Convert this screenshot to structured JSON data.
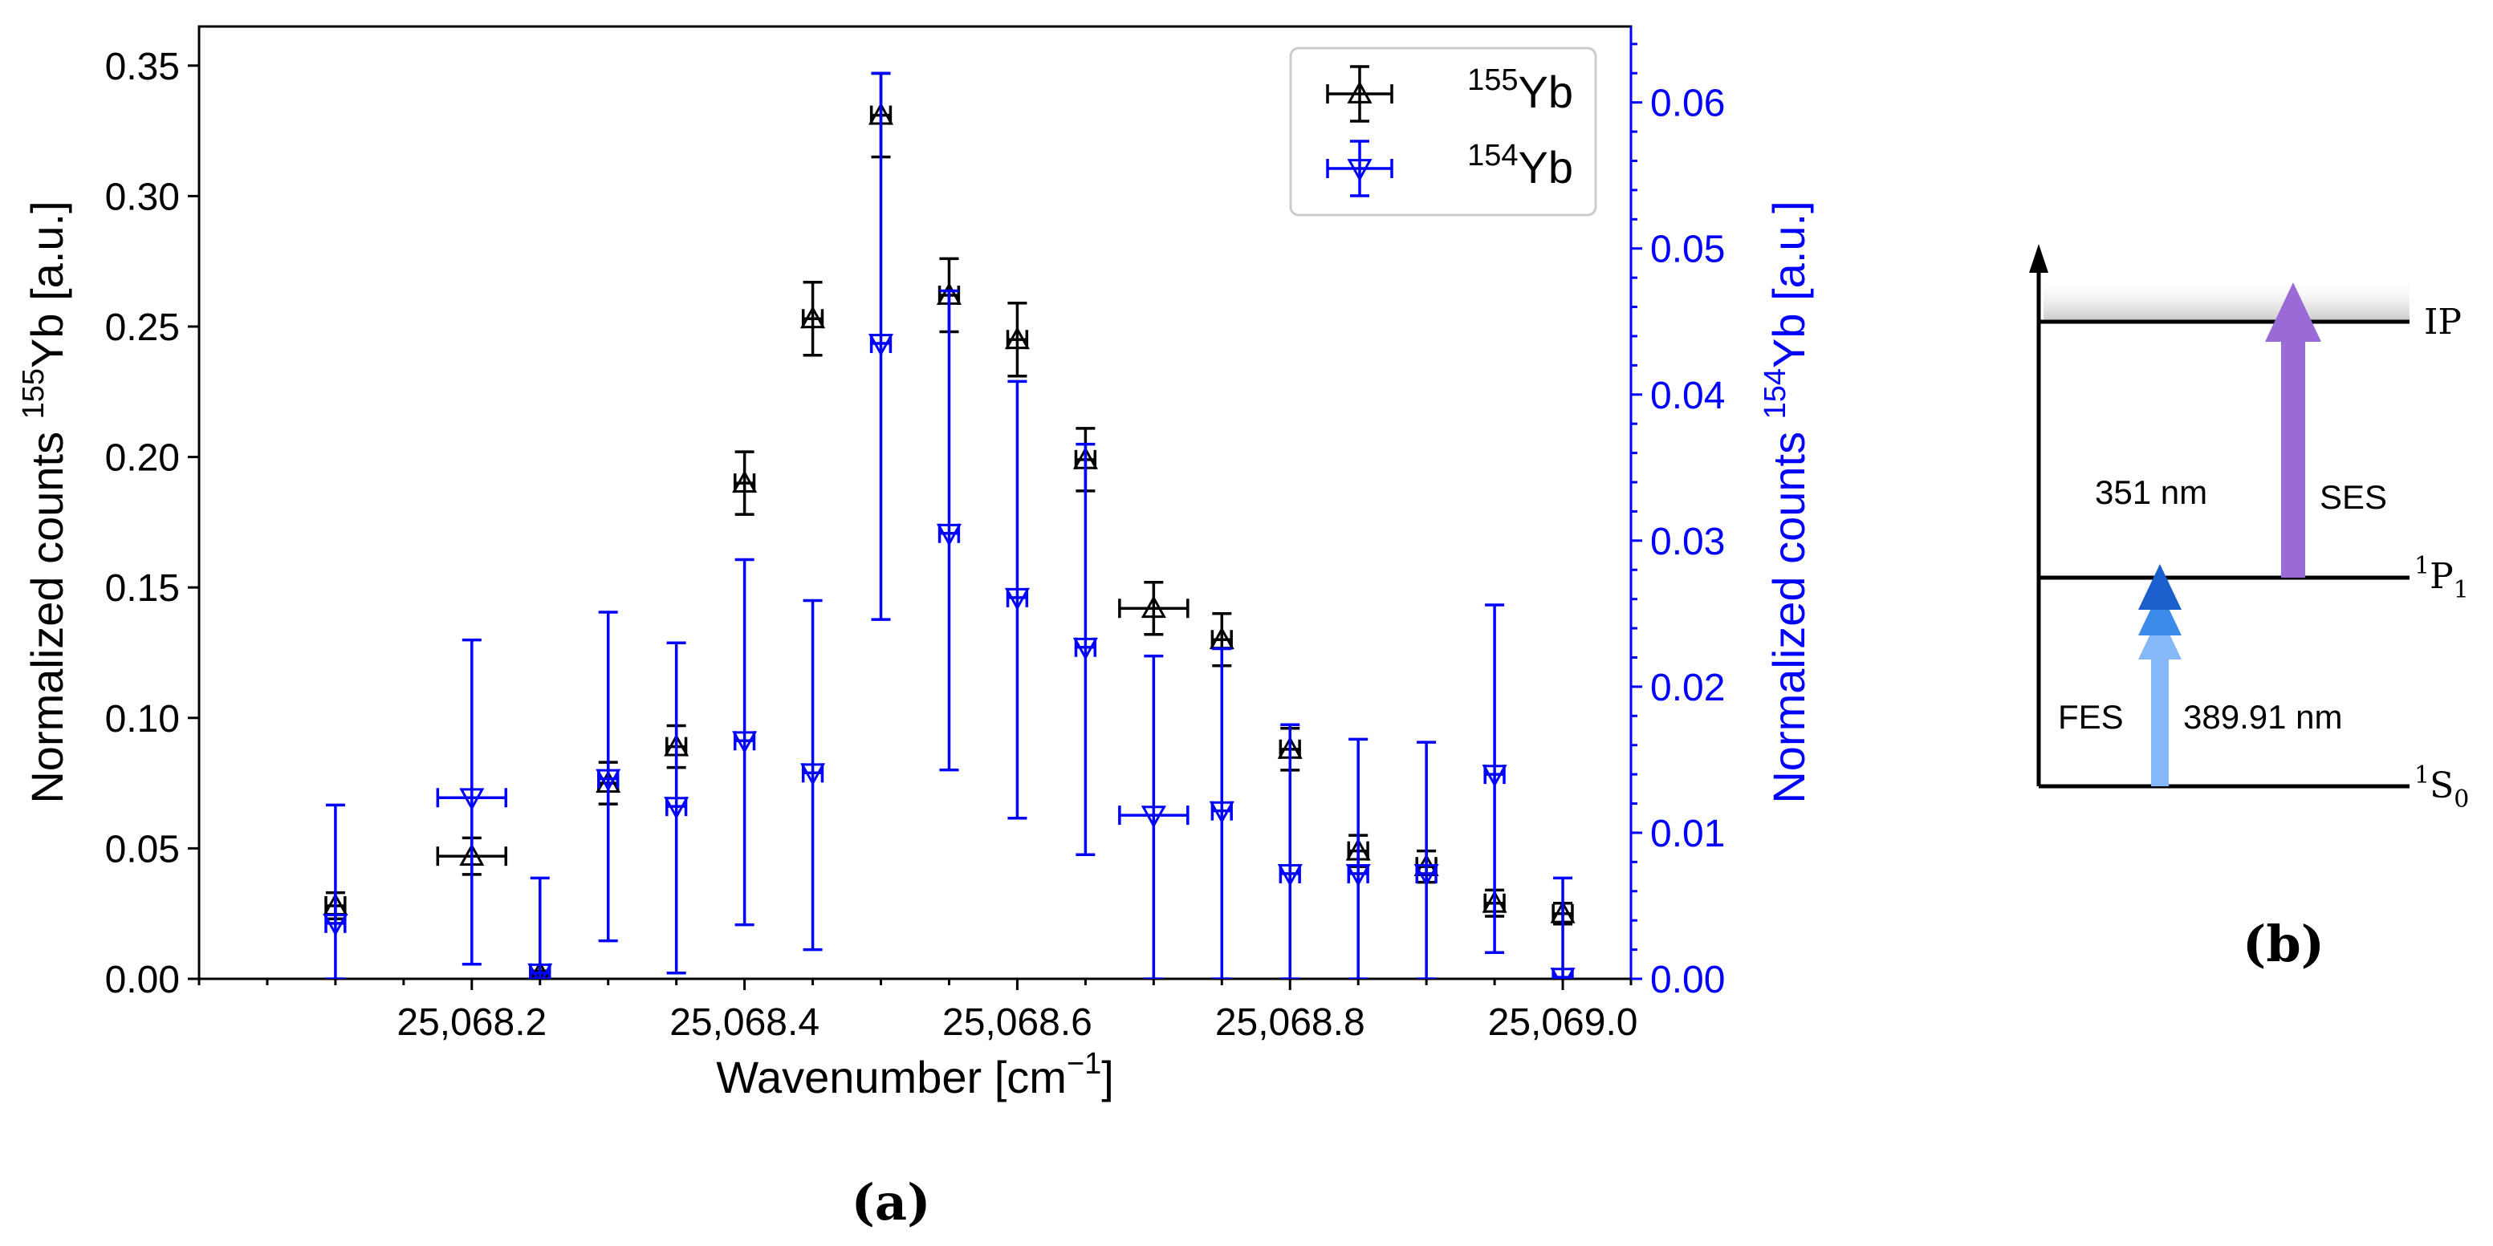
{
  "chart_data": [
    {
      "type": "scatter",
      "panel_label": "(a)",
      "xlabel": "Wavenumber [cm",
      "xlabel_sup": "−1",
      "xlabel_end": "]",
      "xlim": [
        25068.0,
        25069.05
      ],
      "x_ticks": [
        25068.2,
        25068.4,
        25068.6,
        25068.8,
        25069.0
      ],
      "x_tick_labels": [
        "25,068.2",
        "25,068.4",
        "25,068.6",
        "25,068.8",
        "25,069.0"
      ],
      "ylabel_left_pre": "Normalized counts ",
      "ylabel_left_sup": "155",
      "ylabel_left_post": "Yb [a.u.]",
      "ylim_left": [
        0,
        0.365
      ],
      "y_ticks_left": [
        0.0,
        0.05,
        0.1,
        0.15,
        0.2,
        0.25,
        0.3,
        0.35
      ],
      "y_tick_labels_left": [
        "0.00",
        "0.05",
        "0.10",
        "0.15",
        "0.20",
        "0.25",
        "0.30",
        "0.35"
      ],
      "ylabel_right_pre": "Normalized counts ",
      "ylabel_right_sup": "154",
      "ylabel_right_post": "Yb [a.u.]",
      "ylim_right": [
        0,
        0.0652
      ],
      "y_ticks_right": [
        0.0,
        0.01,
        0.02,
        0.03,
        0.04,
        0.05,
        0.06
      ],
      "y_tick_labels_right": [
        "0.00",
        "0.01",
        "0.02",
        "0.03",
        "0.04",
        "0.05",
        "0.06"
      ],
      "legend_position": "top-right",
      "series": [
        {
          "name": "155Yb",
          "name_sup": "155",
          "name_base": "Yb",
          "axis": "left",
          "color": "#000000",
          "marker": "triangle-up",
          "x": [
            25068.1,
            25068.2,
            25068.25,
            25068.3,
            25068.35,
            25068.4,
            25068.45,
            25068.5,
            25068.55,
            25068.6,
            25068.65,
            25068.7,
            25068.75,
            25068.8,
            25068.85,
            25068.9,
            25068.95,
            25069.0
          ],
          "y": [
            0.028,
            0.047,
            0.002,
            0.075,
            0.089,
            0.19,
            0.253,
            0.331,
            0.262,
            0.245,
            0.199,
            0.142,
            0.13,
            0.088,
            0.049,
            0.043,
            0.029,
            0.025
          ],
          "yerr": [
            0.005,
            0.007,
            0.001,
            0.008,
            0.008,
            0.012,
            0.014,
            0.016,
            0.014,
            0.014,
            0.012,
            0.01,
            0.01,
            0.008,
            0.006,
            0.006,
            0.005,
            0.004
          ],
          "xerr": [
            0.007,
            0.025,
            0.007,
            0.007,
            0.007,
            0.007,
            0.007,
            0.007,
            0.007,
            0.007,
            0.007,
            0.025,
            0.007,
            0.007,
            0.007,
            0.007,
            0.007,
            0.007
          ]
        },
        {
          "name": "154Yb",
          "name_sup": "154",
          "name_base": "Yb",
          "axis": "right",
          "color": "#0000ff",
          "marker": "triangle-down",
          "x": [
            25068.1,
            25068.2,
            25068.25,
            25068.3,
            25068.35,
            25068.4,
            25068.45,
            25068.5,
            25068.55,
            25068.6,
            25068.65,
            25068.7,
            25068.75,
            25068.8,
            25068.85,
            25068.9,
            25068.95,
            25069.0
          ],
          "y": [
            0.0038,
            0.0124,
            0.0004,
            0.0137,
            0.0118,
            0.0163,
            0.0141,
            0.0435,
            0.0305,
            0.0261,
            0.0227,
            0.0112,
            0.0115,
            0.0072,
            0.0072,
            0.0072,
            0.014,
            0.0001
          ],
          "y_low": [
            0.0,
            0.001,
            0.0,
            0.0026,
            0.0004,
            0.0037,
            0.002,
            0.0246,
            0.0143,
            0.011,
            0.0085,
            0.0,
            0.0,
            0.0,
            0.0,
            0.0,
            0.0018,
            0.0
          ],
          "y_high": [
            0.0119,
            0.0232,
            0.0069,
            0.0251,
            0.023,
            0.0287,
            0.0259,
            0.062,
            0.0471,
            0.0409,
            0.0366,
            0.0221,
            0.0226,
            0.0174,
            0.0164,
            0.0162,
            0.0256,
            0.0069
          ],
          "xerr": [
            0.007,
            0.025,
            0.007,
            0.007,
            0.007,
            0.007,
            0.007,
            0.007,
            0.007,
            0.007,
            0.007,
            0.025,
            0.007,
            0.007,
            0.007,
            0.007,
            0.007,
            0.007
          ]
        }
      ]
    },
    {
      "type": "diagram",
      "panel_label": "(b)",
      "levels": {
        "ip": "IP",
        "p1_sup": "1",
        "p1_base": "P",
        "p1_sub": "1",
        "s0_sup": "1",
        "s0_base": "S",
        "s0_sub": "0"
      },
      "transitions": {
        "fes_label": "FES",
        "fes_wavelength": "389.91 nm",
        "ses_label": "SES",
        "ses_wavelength": "351 nm"
      },
      "colors": {
        "fes_light": "#84b8f8",
        "fes_mid": "#3b8bea",
        "fes_dark": "#1a5fcc",
        "ses": "#9a6ad6"
      }
    }
  ]
}
